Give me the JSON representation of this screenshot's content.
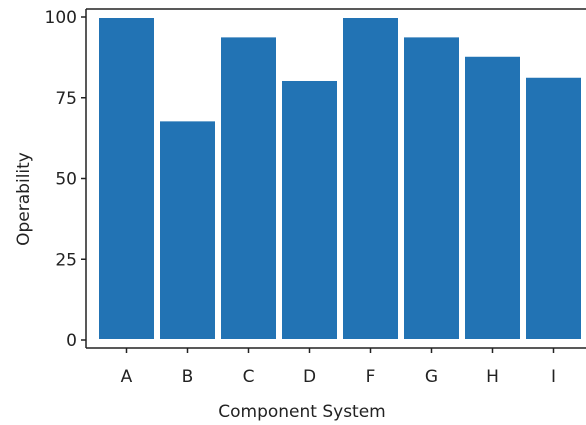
{
  "chart_data": {
    "type": "bar",
    "title": "",
    "xlabel": "Component System",
    "ylabel": "Operability",
    "categories": [
      "A",
      "B",
      "C",
      "D",
      "F",
      "G",
      "H",
      "I"
    ],
    "values": [
      100,
      68,
      94,
      80.5,
      100,
      94,
      88,
      81.5
    ],
    "ylim": [
      0,
      100
    ],
    "yticks": [
      0,
      25,
      50,
      75,
      100
    ],
    "grid": false,
    "legend": "none",
    "colors": {
      "bar": "#2273b4",
      "bar_edge": "#ffffff",
      "axis": "#222222",
      "background": "#ffffff"
    }
  }
}
